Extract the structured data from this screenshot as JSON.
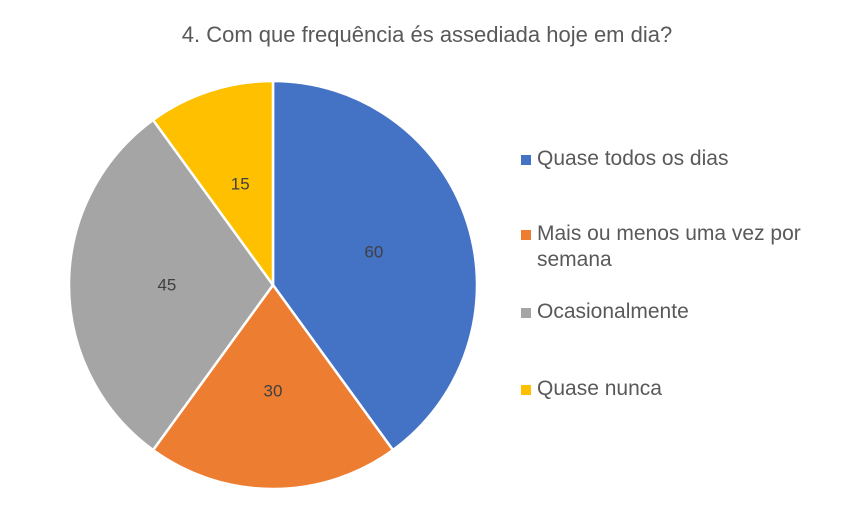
{
  "chart_data": {
    "type": "pie",
    "title": "4. Com que frequência és assediada hoje em dia?",
    "categories": [
      "Quase todos os dias",
      "Mais ou menos uma vez por semana",
      "Ocasionalmente",
      "Quase nunca"
    ],
    "values": [
      60,
      30,
      45,
      15
    ],
    "data_labels": [
      "60",
      "30",
      "45",
      "15"
    ],
    "colors": [
      "#4472C4",
      "#ED7D31",
      "#A5A5A5",
      "#FFC000"
    ],
    "start_angle": "12 o'clock",
    "direction": "clockwise",
    "legend_position": "right"
  }
}
